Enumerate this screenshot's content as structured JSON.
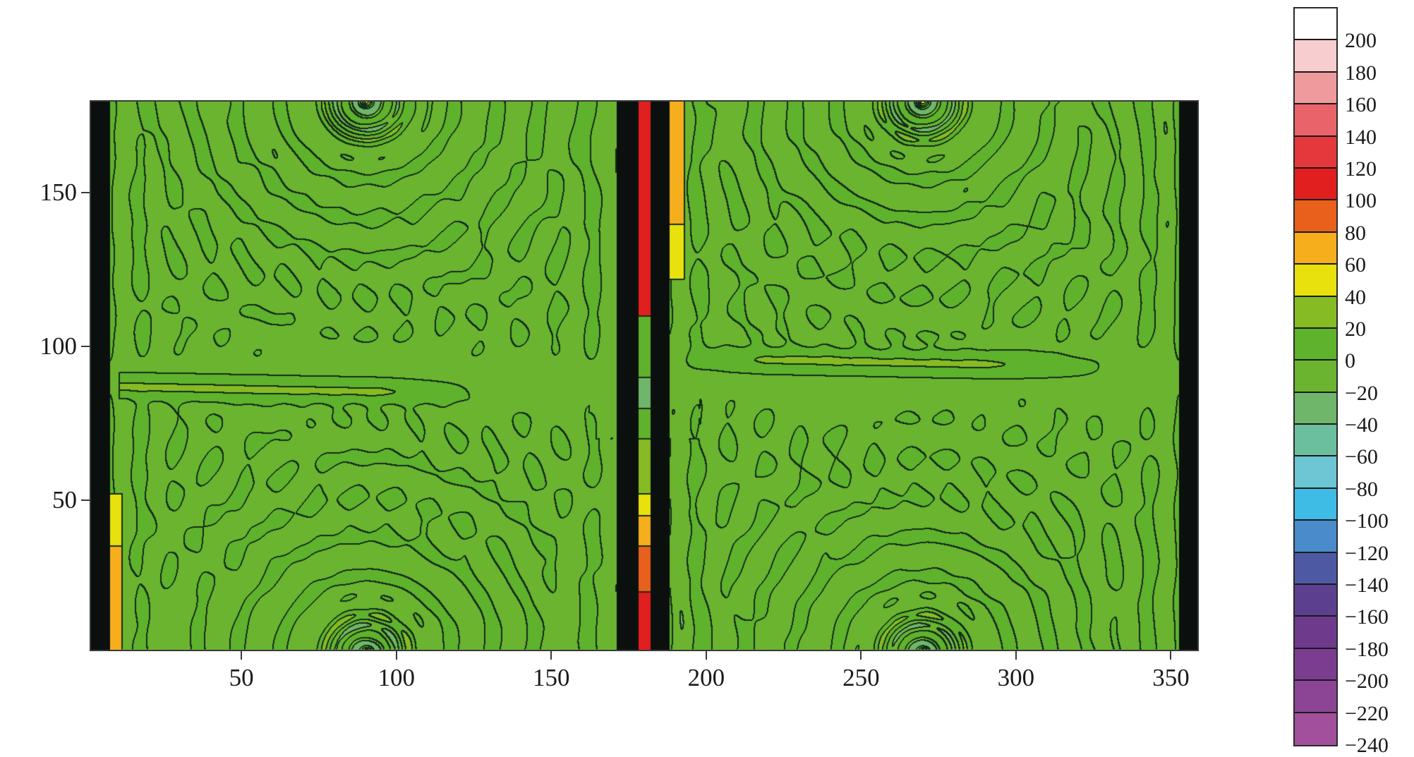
{
  "chart_data": {
    "type": "heatmap",
    "style": "filled contour with black contour lines",
    "title": "",
    "xlabel": "",
    "ylabel": "",
    "xlim": [
      1,
      359
    ],
    "ylim": [
      1,
      180
    ],
    "x_ticks": [
      50,
      100,
      150,
      200,
      250,
      300,
      350
    ],
    "x_tick_labels": [
      "50",
      "100",
      "150",
      "200",
      "250",
      "300",
      "350"
    ],
    "y_ticks": [
      50,
      100,
      150
    ],
    "y_tick_labels": [
      "50",
      "100",
      "150"
    ],
    "grid": false,
    "colorbar": {
      "placement": "right",
      "levels": [
        200,
        180,
        160,
        140,
        120,
        100,
        80,
        60,
        40,
        20,
        0,
        -20,
        -40,
        -60,
        -80,
        -100,
        -120,
        -140,
        -160,
        -180,
        -200,
        -220,
        -240
      ],
      "labels": [
        "200",
        "180",
        "160",
        "140",
        "120",
        "100",
        "80",
        "60",
        "40",
        "20",
        "0",
        "−20",
        "−40",
        "−60",
        "−80",
        "−100",
        "−120",
        "−140",
        "−160",
        "−180",
        "−200",
        "−220",
        "−240"
      ],
      "colors_top_to_bottom": [
        "#ffffff",
        "#f7cdd0",
        "#ef9a9c",
        "#e9646a",
        "#e5383c",
        "#e11f1f",
        "#e8601c",
        "#f6ae1c",
        "#e9e10e",
        "#86bb24",
        "#5fb22c",
        "#6ab42f",
        "#6fb66a",
        "#6bbf9e",
        "#6cc6d3",
        "#3fbce6",
        "#4a8ccb",
        "#4d5aa3",
        "#5d3f8f",
        "#6d3a8c",
        "#7b3d8f",
        "#8c4594",
        "#a24f9c"
      ]
    },
    "features": {
      "dominant_range": [
        -20,
        20
      ],
      "high_band_near_x": 180,
      "black_bands_x": [
        [
          1,
          7
        ],
        [
          171,
          178
        ],
        [
          182,
          188
        ],
        [
          353,
          359
        ]
      ],
      "ripple_centers": [
        [
          90,
          0
        ],
        [
          90,
          180
        ],
        [
          270,
          0
        ],
        [
          270,
          180
        ]
      ]
    }
  }
}
